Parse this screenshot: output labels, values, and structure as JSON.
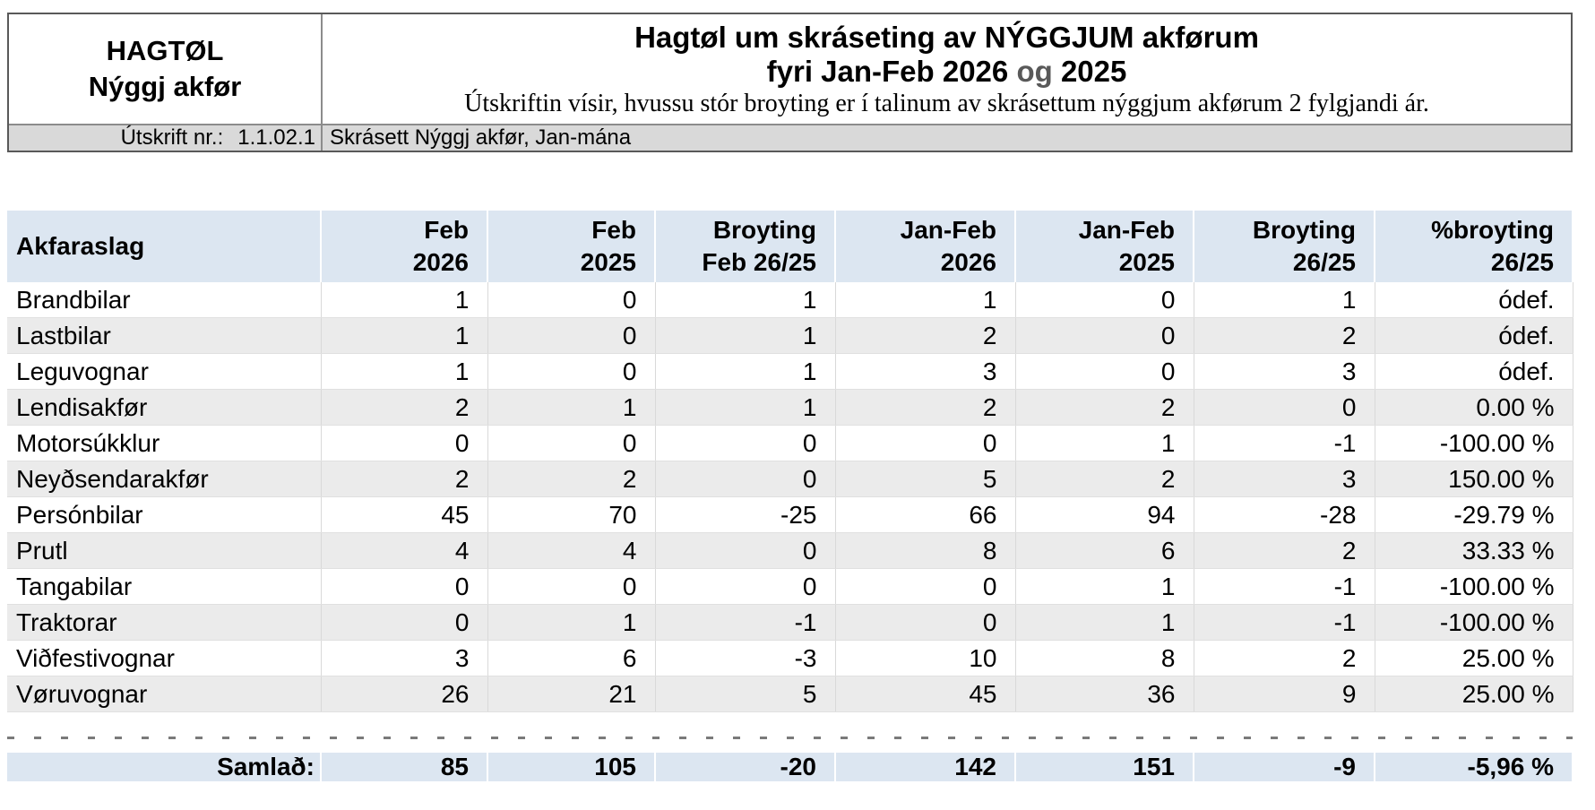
{
  "report_header": {
    "org_title_line1": "HAGTØL",
    "org_title_line2": "Nýggj akfør",
    "main_title": "Hagtøl um skráseting av NÝGGJUM akførum",
    "period_part1": "fyri Jan-Feb 2026",
    "period_conj": "og",
    "period_part2": "2025",
    "description": "Útskriftin vísir, hvussu stór broyting er í talinum av skrásettum nýggjum akførum 2 fylgjandi ár.",
    "print_no_label": "Útskrift nr.:",
    "print_no_value": "1.1.02.1",
    "dataset_label": "Skrásett Nýggj akfør, Jan-mána"
  },
  "colors": {
    "header_blue": "#dce6f1",
    "alt_row_gray": "#ebebeb",
    "meta_gray": "#d9d9d9",
    "conj_gray": "#595959"
  },
  "table": {
    "columns": [
      {
        "line1": "Akfaraslag",
        "line2": ""
      },
      {
        "line1": "Feb",
        "line2": "2026"
      },
      {
        "line1": "Feb",
        "line2": "2025"
      },
      {
        "line1": "Broyting",
        "line2": "Feb 26/25"
      },
      {
        "line1": "Jan-Feb",
        "line2": "2026"
      },
      {
        "line1": "Jan-Feb",
        "line2": "2025"
      },
      {
        "line1": "Broyting",
        "line2": "26/25"
      },
      {
        "line1": "%broyting",
        "line2": "26/25"
      }
    ],
    "rows": [
      {
        "label": "Brandbilar",
        "values": [
          "1",
          "0",
          "1",
          "1",
          "0",
          "1",
          "ódef."
        ]
      },
      {
        "label": "Lastbilar",
        "values": [
          "1",
          "0",
          "1",
          "2",
          "0",
          "2",
          "ódef."
        ]
      },
      {
        "label": "Leguvognar",
        "values": [
          "1",
          "0",
          "1",
          "3",
          "0",
          "3",
          "ódef."
        ]
      },
      {
        "label": "Lendisakfør",
        "values": [
          "2",
          "1",
          "1",
          "2",
          "2",
          "0",
          "0.00 %"
        ]
      },
      {
        "label": "Motorsúkklur",
        "values": [
          "0",
          "0",
          "0",
          "0",
          "1",
          "-1",
          "-100.00 %"
        ]
      },
      {
        "label": "Neyðsendarakfør",
        "values": [
          "2",
          "2",
          "0",
          "5",
          "2",
          "3",
          "150.00 %"
        ]
      },
      {
        "label": "Persónbilar",
        "values": [
          "45",
          "70",
          "-25",
          "66",
          "94",
          "-28",
          "-29.79 %"
        ]
      },
      {
        "label": "Prutl",
        "values": [
          "4",
          "4",
          "0",
          "8",
          "6",
          "2",
          "33.33 %"
        ]
      },
      {
        "label": "Tangabilar",
        "values": [
          "0",
          "0",
          "0",
          "0",
          "1",
          "-1",
          "-100.00 %"
        ]
      },
      {
        "label": "Traktorar",
        "values": [
          "0",
          "1",
          "-1",
          "0",
          "1",
          "-1",
          "-100.00 %"
        ]
      },
      {
        "label": "Viðfestivognar",
        "values": [
          "3",
          "6",
          "-3",
          "10",
          "8",
          "2",
          "25.00 %"
        ]
      },
      {
        "label": "Vøruvognar",
        "values": [
          "26",
          "21",
          "5",
          "45",
          "36",
          "9",
          "25.00 %"
        ]
      }
    ],
    "total": {
      "label": "Samlað:",
      "values": [
        "85",
        "105",
        "-20",
        "142",
        "151",
        "-9",
        "-5,96 %"
      ]
    }
  }
}
